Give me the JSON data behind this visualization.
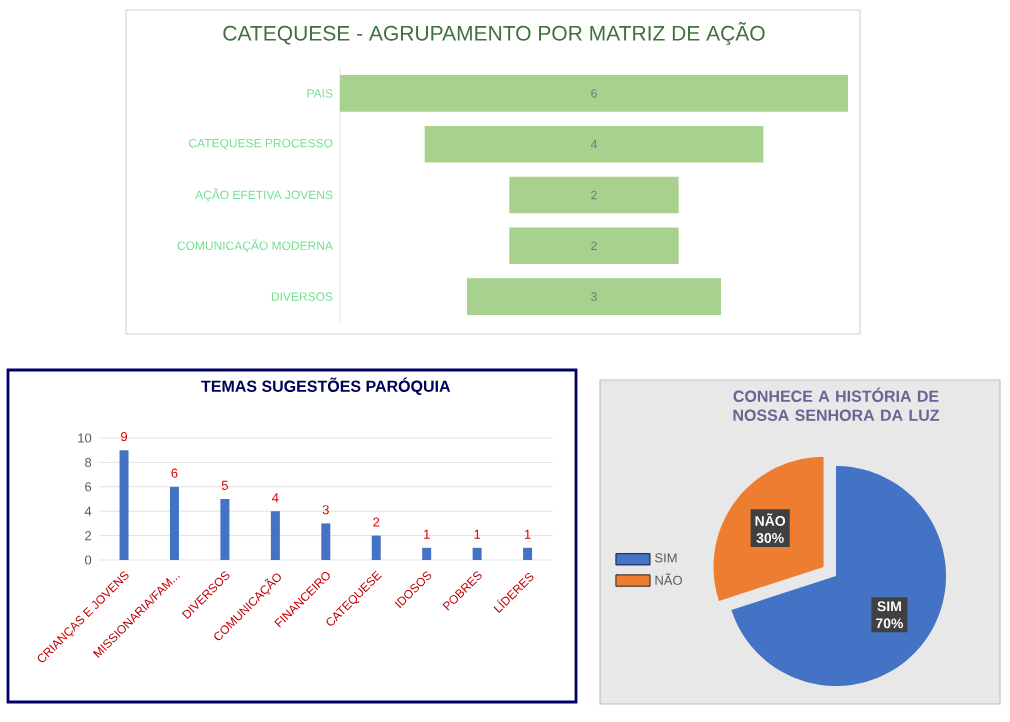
{
  "chart_data": [
    {
      "type": "other",
      "title": "CATEQUESE - AGRUPAMENTO POR MATRIZ DE AÇÃO",
      "categories": [
        "PAIS",
        "CATEQUESE PROCESSO",
        "AÇÃO EFETIVA JOVENS",
        "COMUNICAÇÃO MODERNA",
        "DIVERSOS"
      ],
      "values": [
        6,
        4,
        2,
        2,
        3
      ],
      "color": "#a9d18e",
      "data_labels": true
    },
    {
      "type": "bar",
      "title": "TEMAS SUGESTÕES PARÓQUIA",
      "categories": [
        "CRIANÇAS E JOVENS",
        "MISSIONARIA/FAM...",
        "DIVERSOS",
        "COMUNICAÇÃO",
        "FINANCEIRO",
        "CATEQUESE",
        "IDOSOS",
        "POBRES",
        "LÍDERES"
      ],
      "values": [
        9,
        6,
        5,
        4,
        3,
        2,
        1,
        1,
        1
      ],
      "color": "#4472c4",
      "ylim": [
        0,
        10
      ],
      "yticks": [
        0,
        2,
        4,
        6,
        8,
        10
      ],
      "grid": "y",
      "data_labels": true
    },
    {
      "type": "pie",
      "title": "CONHECE A HISTÓRIA DE NOSSA SENHORA DA LUZ",
      "categories": [
        "SIM",
        "NÃO"
      ],
      "values": [
        70,
        30
      ],
      "colors": [
        "#4472c4",
        "#ed7d31"
      ],
      "value_labels": [
        "70%",
        "30%"
      ],
      "legend": "left"
    }
  ]
}
